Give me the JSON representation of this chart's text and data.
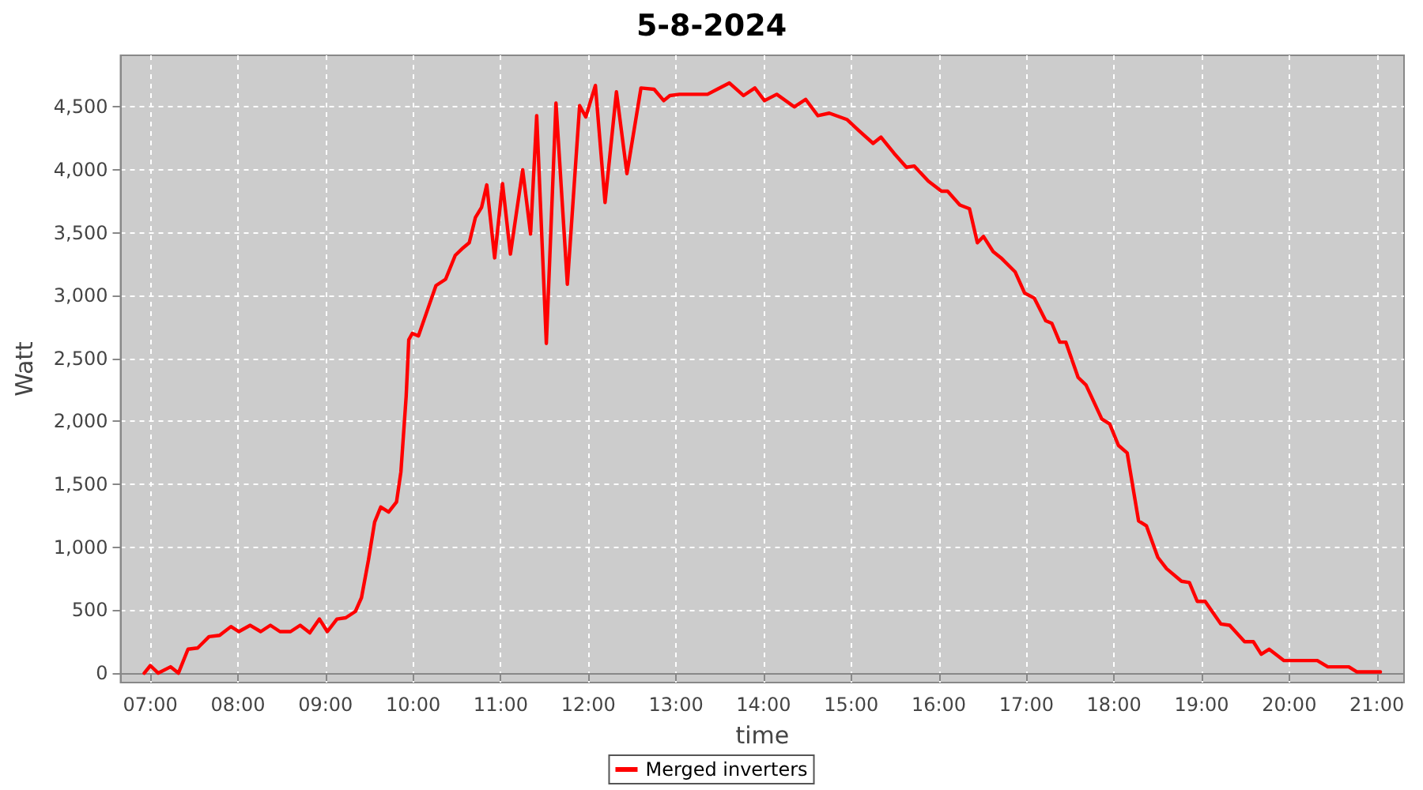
{
  "chart_data": {
    "type": "line",
    "title": "5-8-2024",
    "xlabel": "time",
    "ylabel": "Watt",
    "x": [
      6.93,
      7.0,
      7.09,
      7.23,
      7.32,
      7.43,
      7.54,
      7.67,
      7.79,
      7.92,
      8.01,
      8.14,
      8.26,
      8.37,
      8.48,
      8.6,
      8.71,
      8.82,
      8.93,
      9.02,
      9.13,
      9.23,
      9.34,
      9.41,
      9.49,
      9.56,
      9.63,
      9.72,
      9.81,
      9.86,
      9.92,
      9.95,
      9.99,
      10.06,
      10.17,
      10.26,
      10.37,
      10.48,
      10.57,
      10.64,
      10.71,
      10.78,
      10.84,
      10.93,
      11.02,
      11.11,
      11.25,
      11.34,
      11.41,
      11.52,
      11.63,
      11.76,
      11.9,
      11.97,
      12.08,
      12.19,
      12.32,
      12.44,
      12.6,
      12.75,
      12.86,
      12.93,
      13.04,
      13.36,
      13.47,
      13.61,
      13.77,
      13.9,
      14.01,
      14.15,
      14.35,
      14.48,
      14.62,
      14.75,
      14.95,
      15.09,
      15.25,
      15.34,
      15.49,
      15.63,
      15.72,
      15.88,
      16.03,
      16.1,
      16.24,
      16.35,
      16.44,
      16.51,
      16.62,
      16.71,
      16.87,
      16.98,
      17.09,
      17.22,
      17.29,
      17.38,
      17.45,
      17.59,
      17.68,
      17.86,
      17.95,
      18.05,
      18.15,
      18.28,
      18.37,
      18.5,
      18.6,
      18.77,
      18.86,
      18.95,
      19.04,
      19.22,
      19.32,
      19.49,
      19.59,
      19.68,
      19.77,
      19.94,
      20.32,
      20.44,
      20.68,
      20.77,
      21.04
    ],
    "series": [
      {
        "name": "Merged inverters",
        "color": "#ff0000",
        "values": [
          0,
          60,
          0,
          50,
          0,
          190,
          200,
          290,
          300,
          370,
          330,
          380,
          330,
          380,
          330,
          330,
          380,
          320,
          430,
          330,
          430,
          440,
          490,
          600,
          900,
          1200,
          1320,
          1280,
          1360,
          1600,
          2200,
          2650,
          2700,
          2680,
          2900,
          3080,
          3130,
          3320,
          3380,
          3420,
          3620,
          3700,
          3880,
          3300,
          3890,
          3330,
          4000,
          3490,
          4430,
          2620,
          4530,
          3090,
          4510,
          4420,
          4670,
          3740,
          4620,
          3970,
          4650,
          4640,
          4550,
          4590,
          4600,
          4600,
          4640,
          4690,
          4590,
          4650,
          4550,
          4600,
          4500,
          4560,
          4430,
          4450,
          4400,
          4310,
          4210,
          4260,
          4130,
          4020,
          4030,
          3910,
          3830,
          3830,
          3720,
          3690,
          3420,
          3470,
          3350,
          3300,
          3190,
          3020,
          2980,
          2800,
          2780,
          2630,
          2630,
          2350,
          2290,
          2020,
          1980,
          1810,
          1750,
          1210,
          1170,
          920,
          830,
          730,
          720,
          570,
          570,
          390,
          380,
          250,
          250,
          150,
          190,
          100,
          100,
          50,
          50,
          10,
          10
        ]
      }
    ],
    "xlim": [
      6.66,
      21.31
    ],
    "xticks": [
      {
        "value": 7,
        "label": "07:00"
      },
      {
        "value": 8,
        "label": "08:00"
      },
      {
        "value": 9,
        "label": "09:00"
      },
      {
        "value": 10,
        "label": "10:00"
      },
      {
        "value": 11,
        "label": "11:00"
      },
      {
        "value": 12,
        "label": "12:00"
      },
      {
        "value": 13,
        "label": "13:00"
      },
      {
        "value": 14,
        "label": "14:00"
      },
      {
        "value": 15,
        "label": "15:00"
      },
      {
        "value": 16,
        "label": "16:00"
      },
      {
        "value": 17,
        "label": "17:00"
      },
      {
        "value": 18,
        "label": "18:00"
      },
      {
        "value": 19,
        "label": "19:00"
      },
      {
        "value": 20,
        "label": "20:00"
      },
      {
        "value": 21,
        "label": "21:00"
      }
    ],
    "ylim": [
      -75,
      4910
    ],
    "yticks": [
      0,
      500,
      {
        "value": 1000,
        "label": "1,000"
      },
      {
        "value": 1500,
        "label": "1,500"
      },
      {
        "value": 2000,
        "label": "2,000"
      },
      {
        "value": 2500,
        "label": "2,500"
      },
      {
        "value": 3000,
        "label": "3,000"
      },
      {
        "value": 3500,
        "label": "3,500"
      },
      {
        "value": 4000,
        "label": "4,000"
      },
      {
        "value": 4500,
        "label": "4,500"
      }
    ],
    "grid": true,
    "legend": "bottom",
    "marker": "none",
    "line_style": "solid"
  }
}
